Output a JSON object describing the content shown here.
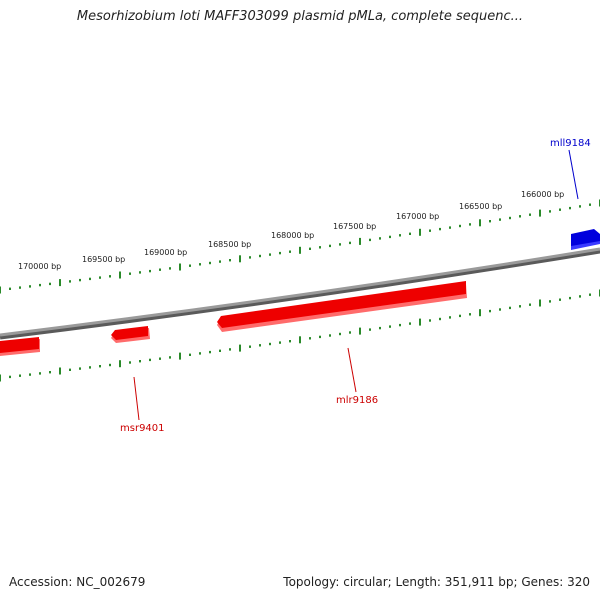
{
  "title": "Mesorhizobium loti MAFF303099 plasmid pMLa, complete sequenc...",
  "footer": {
    "accession": "Accession: NC_002679",
    "summary": "Topology: circular; Length: 351,911 bp; Genes: 320"
  },
  "colors": {
    "background": "#ffffff",
    "backbone": "#8a8a8a",
    "forward_gene": "#ee0000",
    "reverse_gene_blue": "#0000dd",
    "ticks": "#2a8a2a",
    "gene_label_red": "#cc0000",
    "gene_label_blue": "#0000cc"
  },
  "scale_labels": [
    "166000 bp",
    "166500 bp",
    "167000 bp",
    "167500 bp",
    "168000 bp",
    "168500 bp",
    "169000 bp",
    "169500 bp",
    "170000 bp"
  ],
  "genes": [
    {
      "name": "mll9184",
      "strand": "reverse"
    },
    {
      "name": "mlr9186",
      "strand": "forward"
    },
    {
      "name": "msr9401",
      "strand": "forward"
    }
  ]
}
